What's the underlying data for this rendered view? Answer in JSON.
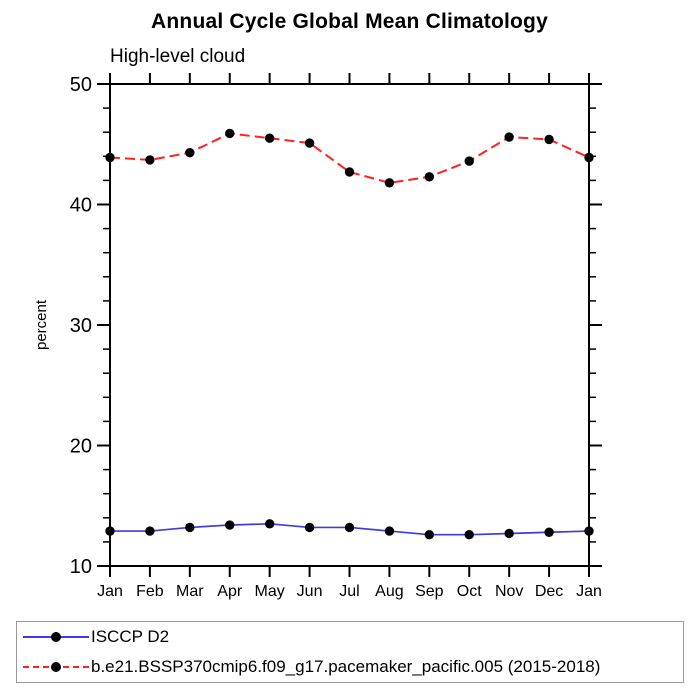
{
  "title": "Annual Cycle Global Mean Climatology",
  "subtitle": "High-level cloud",
  "colors": {
    "axis": "#000000",
    "marker": "#000000",
    "obs_line": "#3c3ce0",
    "model_line": "#ff2222",
    "legend_border": "#9a9a9a"
  },
  "legend": {
    "position": "bottom",
    "entries": [
      {
        "label": "ISCCP D2",
        "style": "solid",
        "color": "#3c3ce0"
      },
      {
        "label": "b.e21.BSSP370cmip6.f09_g17.pacemaker_pacific.005 (2015-2018)",
        "style": "dashed",
        "color": "#ff2222"
      }
    ]
  },
  "chart_data": {
    "type": "line",
    "title": "Annual Cycle Global Mean Climatology",
    "subtitle": "High-level cloud",
    "xlabel": "",
    "ylabel": "percent",
    "ylim": [
      10,
      50
    ],
    "yticks": [
      10,
      20,
      30,
      40,
      50
    ],
    "y_minor_step": 2,
    "grid": false,
    "legend_position": "bottom",
    "categories": [
      "Jan",
      "Feb",
      "Mar",
      "Apr",
      "May",
      "Jun",
      "Jul",
      "Aug",
      "Sep",
      "Oct",
      "Nov",
      "Dec",
      "Jan"
    ],
    "series": [
      {
        "name": "ISCCP D2",
        "style": "solid",
        "color": "#3c3ce0",
        "marker": "filled-circle",
        "values": [
          12.9,
          12.9,
          13.2,
          13.4,
          13.5,
          13.2,
          13.2,
          12.9,
          12.6,
          12.6,
          12.7,
          12.8,
          12.9
        ]
      },
      {
        "name": "b.e21.BSSP370cmip6.f09_g17.pacemaker_pacific.005 (2015-2018)",
        "style": "dashed",
        "color": "#ff2222",
        "marker": "filled-circle",
        "values": [
          43.9,
          43.7,
          44.3,
          45.9,
          45.5,
          45.1,
          42.7,
          41.8,
          42.3,
          43.6,
          45.6,
          45.4,
          43.9
        ]
      }
    ]
  }
}
